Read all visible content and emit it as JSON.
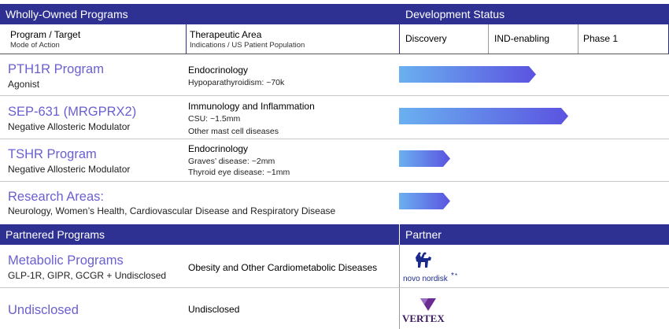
{
  "header": {
    "wholly_owned": "Wholly-Owned Programs",
    "development_status": "Development Status",
    "partnered": "Partnered Programs",
    "partner": "Partner"
  },
  "columns": {
    "program_target": "Program / Target",
    "mode_of_action": "Mode of Action",
    "therapeutic_area": "Therapeutic Area",
    "indications": "Indications / US Patient Population",
    "discovery": "Discovery",
    "ind_enabling": "IND-enabling",
    "phase1": "Phase 1"
  },
  "programs": [
    {
      "title": "PTH1R Program",
      "subtitle": "Agonist",
      "area": "Endocrinology",
      "details": [
        "Hypoparathyroidism: ~70k"
      ],
      "progress_stage_fraction": 0.5
    },
    {
      "title": "SEP-631 (MRGPRX2)",
      "subtitle": "Negative Allosteric Modulator",
      "area": "Immunology and Inflammation",
      "details": [
        "CSU: ~1.5mm",
        "Other mast cell diseases"
      ],
      "progress_stage_fraction": 0.64
    },
    {
      "title": "TSHR Program",
      "subtitle": "Negative Allosteric Modulator",
      "area": "Endocrinology",
      "details": [
        "Graves’ disease: ~2mm",
        "Thyroid eye disease: ~1mm"
      ],
      "progress_stage_fraction": 0.2
    },
    {
      "title": "Research Areas:",
      "subtitle": "Neurology, Women’s Health, Cardiovascular Disease and Respiratory Disease",
      "progress_stage_fraction": 0.2
    }
  ],
  "partnered_programs": [
    {
      "title": "Metabolic Programs",
      "subtitle": "GLP-1R, GIPR, GCGR + Undisclosed",
      "area": "Obesity and Other Cardiometabolic Diseases",
      "partner_logo_text": "novo nordisk"
    },
    {
      "title": "Undisclosed",
      "area": "Undisclosed",
      "partner_logo_text": "VERTEX"
    }
  ],
  "colors": {
    "header_bg": "#2e3192",
    "title_text": "#6a5fd0",
    "arrow_start": "#6ab0f0",
    "arrow_end": "#5b53e0",
    "novo_blue": "#1a2a8c",
    "vertex_purple": "#6a2c91"
  }
}
